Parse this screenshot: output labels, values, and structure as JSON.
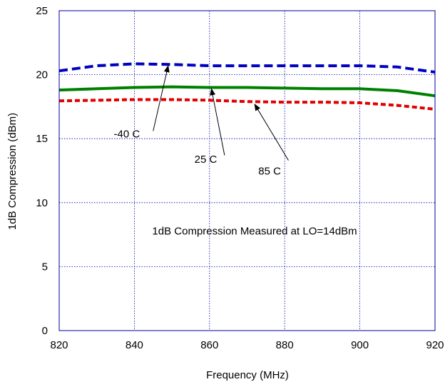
{
  "chart_data": {
    "type": "line",
    "title": "",
    "xlabel": "Frequency (MHz)",
    "ylabel": "1dB Compression (dBm)",
    "xlim": [
      820,
      920
    ],
    "ylim": [
      0,
      25
    ],
    "x_ticks": [
      820,
      840,
      860,
      880,
      900,
      920
    ],
    "y_ticks": [
      0,
      5,
      10,
      15,
      20,
      25
    ],
    "grid": true,
    "series": [
      {
        "name": "-40 C",
        "color": "#0000c0",
        "style": "dashed",
        "x": [
          820,
          830,
          840,
          850,
          860,
          870,
          880,
          890,
          900,
          910,
          920
        ],
        "y": [
          20.3,
          20.7,
          20.85,
          20.8,
          20.7,
          20.7,
          20.7,
          20.7,
          20.7,
          20.6,
          20.2
        ]
      },
      {
        "name": "25 C",
        "color": "#008000",
        "style": "solid",
        "x": [
          820,
          830,
          840,
          850,
          860,
          870,
          880,
          890,
          900,
          910,
          920
        ],
        "y": [
          18.8,
          18.9,
          19.0,
          19.05,
          19.0,
          19.0,
          18.95,
          18.9,
          18.9,
          18.75,
          18.35
        ]
      },
      {
        "name": "85 C",
        "color": "#e00000",
        "style": "dashed",
        "x": [
          820,
          830,
          840,
          850,
          860,
          870,
          880,
          890,
          900,
          910,
          920
        ],
        "y": [
          17.95,
          18.0,
          18.05,
          18.05,
          18.0,
          17.9,
          17.85,
          17.85,
          17.8,
          17.6,
          17.3
        ]
      }
    ],
    "annotations": [
      {
        "text": "-40 C",
        "label_x": 838,
        "label_y": 15.1,
        "arrow_from": [
          845,
          15.6
        ],
        "arrow_to": [
          849,
          20.7
        ]
      },
      {
        "text": "25 C",
        "label_x": 859,
        "label_y": 13.1,
        "arrow_from": [
          864,
          13.7
        ],
        "arrow_to": [
          860.5,
          18.9
        ]
      },
      {
        "text": "85 C",
        "label_x": 876,
        "label_y": 12.2,
        "arrow_from": [
          881,
          13.3
        ],
        "arrow_to": [
          872,
          17.7
        ]
      },
      {
        "text": "1dB Compression Measured at LO=14dBm",
        "label_x": 872,
        "label_y": 7.5
      }
    ]
  }
}
